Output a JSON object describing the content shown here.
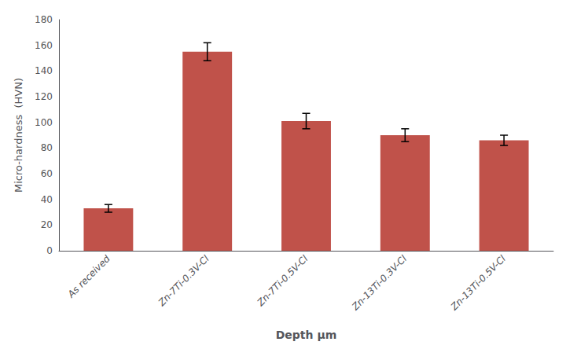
{
  "chart_data": {
    "type": "bar",
    "categories": [
      "As received",
      "Zn-7Ti-0.3V-Cl",
      "Zn-7Ti-0.5V-Cl",
      "Zn-13Ti-0.3V-Cl",
      "Zn-13Ti-0.5V-Cl"
    ],
    "values": [
      33,
      155,
      101,
      90,
      86
    ],
    "errors": [
      3,
      7,
      6,
      5,
      4
    ],
    "color": "#c0524a",
    "xlabel": "Depth μm",
    "ylabel": "Micro-hardness  (HVN)",
    "ylim": [
      0,
      180
    ],
    "yticks": [
      0,
      20,
      40,
      60,
      80,
      100,
      120,
      140,
      160,
      180
    ],
    "grid": false
  }
}
